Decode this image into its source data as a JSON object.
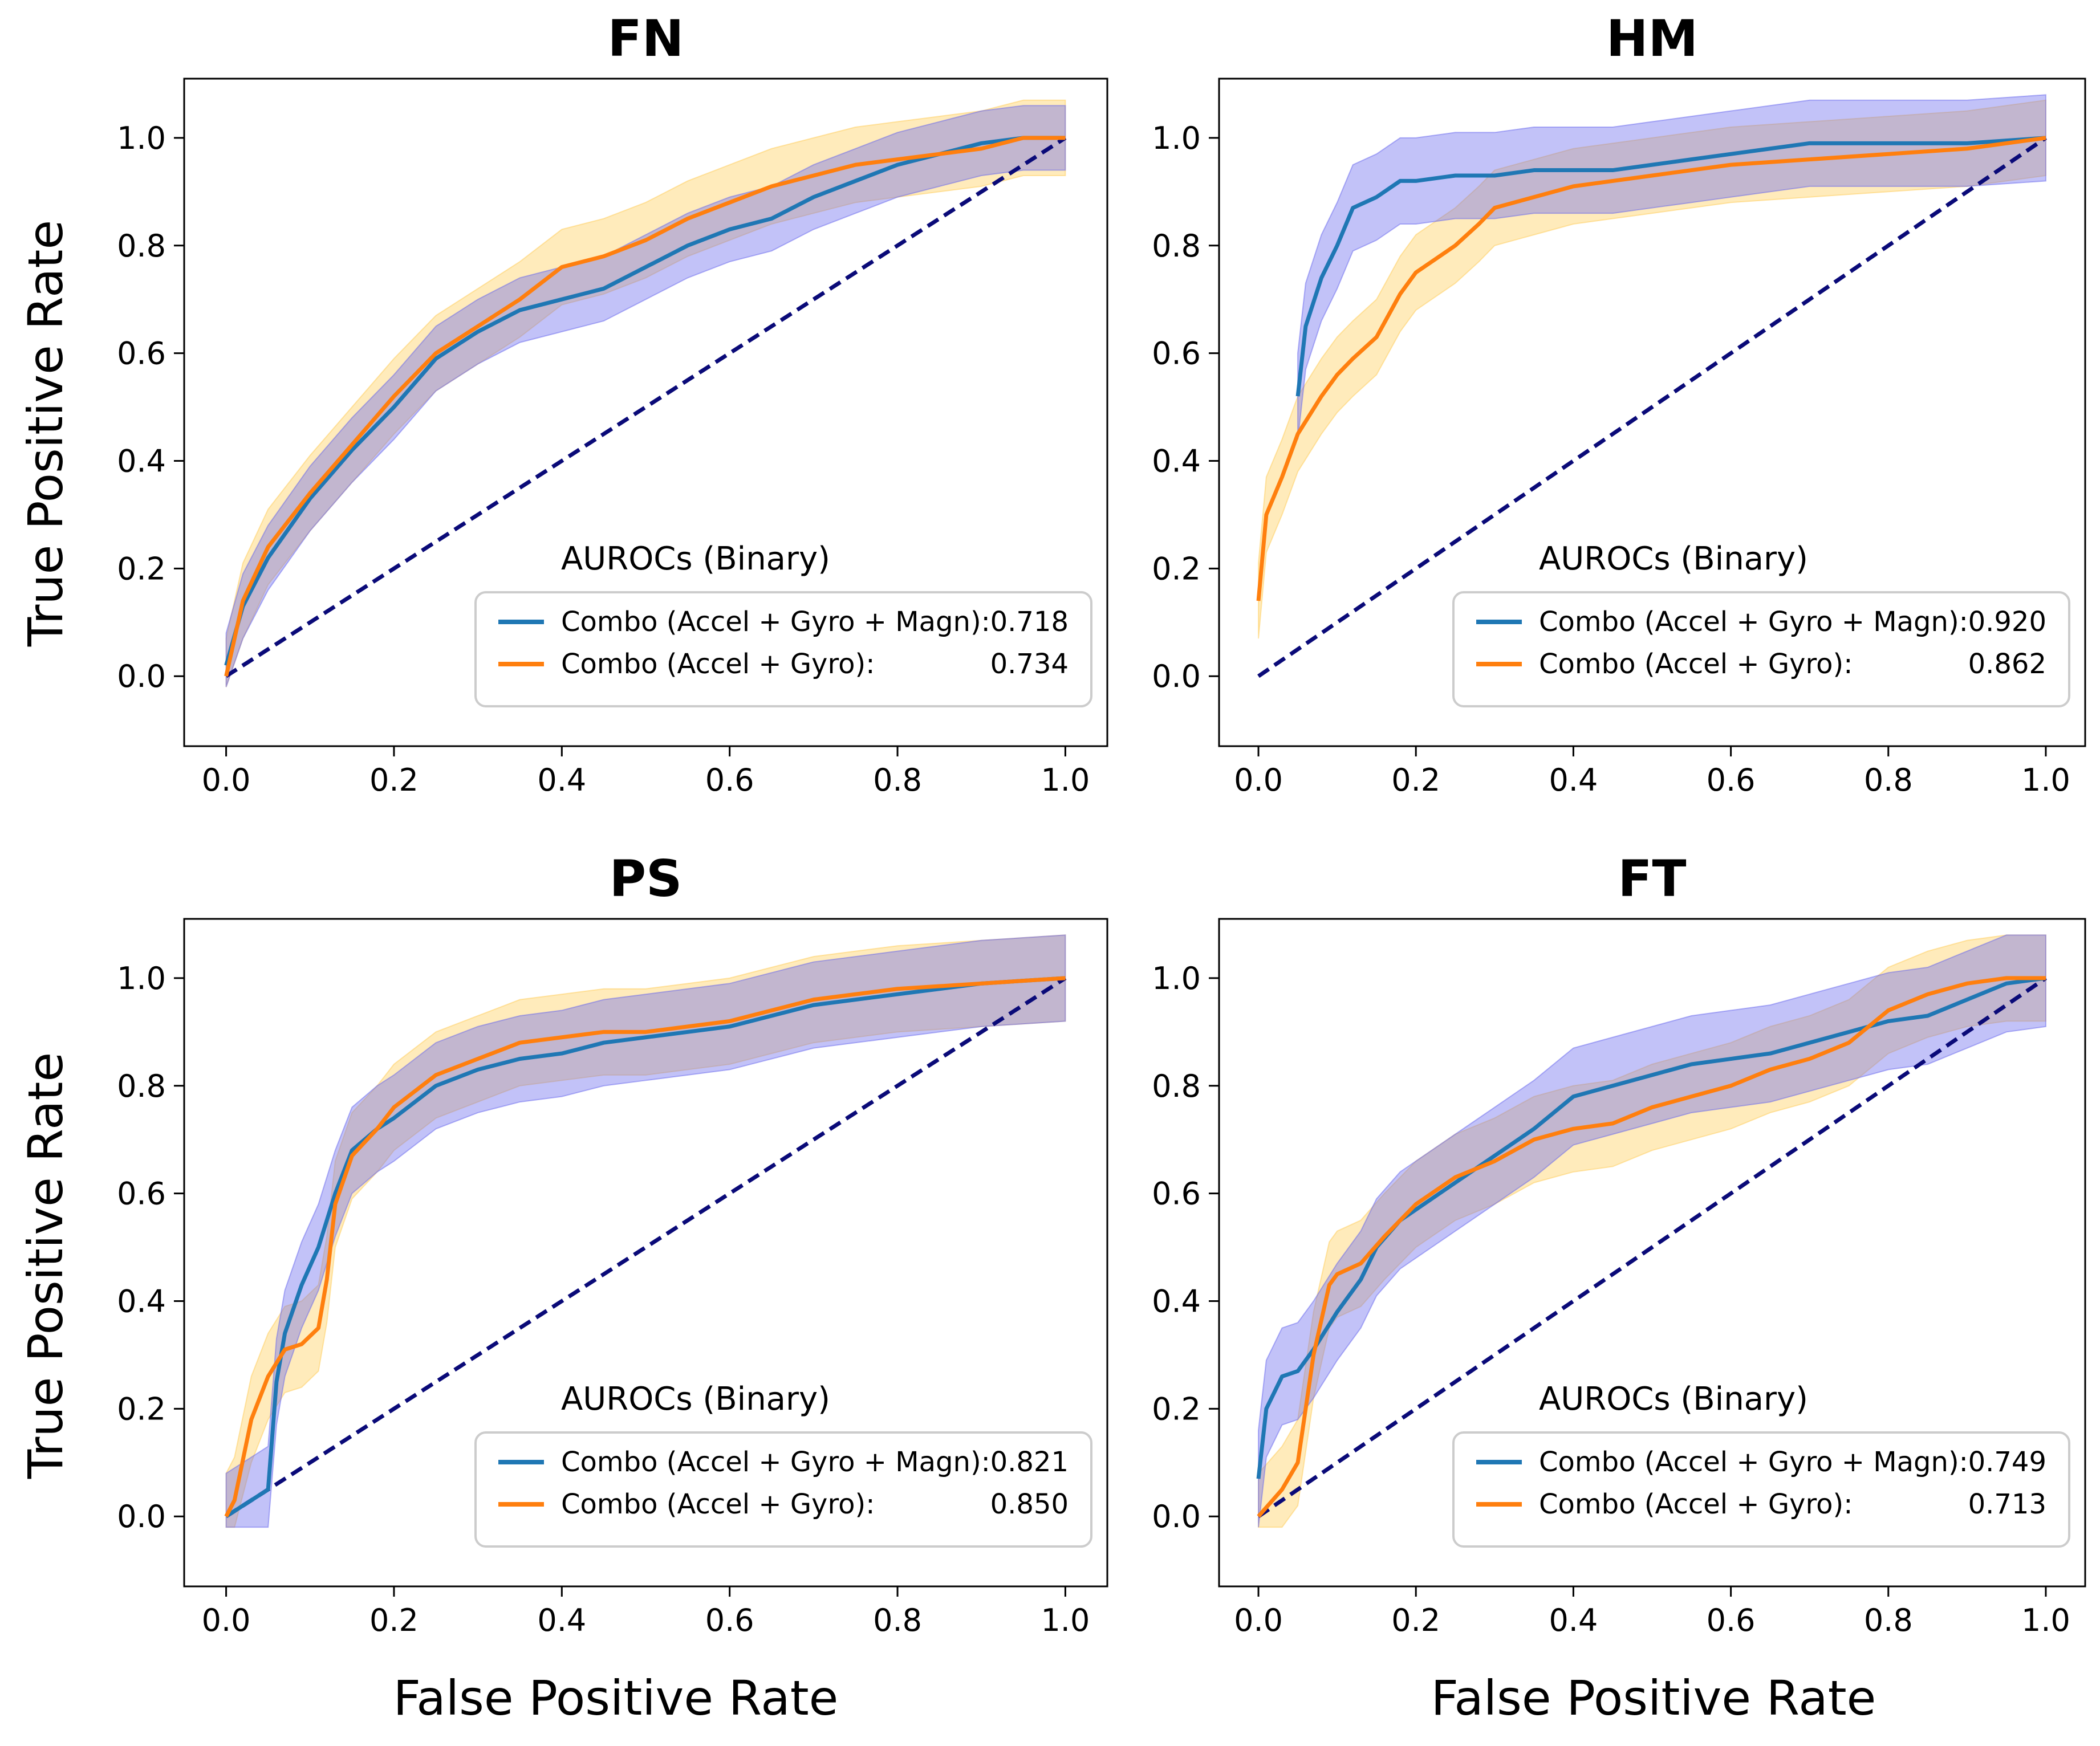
{
  "figure": {
    "ylabel": "True Positive Rate",
    "xlabel": "False Positive Rate"
  },
  "colors": {
    "blue": "#1f77b4",
    "orange": "#ff7f0e",
    "blue_band": "#6666ee",
    "orange_band": "#ffcc55",
    "diagonal": "#0a0a78"
  },
  "chart_data": [
    {
      "type": "line",
      "title": "FN",
      "xlim": [
        -0.05,
        1.05
      ],
      "ylim": [
        -0.13,
        1.11
      ],
      "xticks": [
        0.0,
        0.2,
        0.4,
        0.6,
        0.8,
        1.0
      ],
      "yticks": [
        0.0,
        0.2,
        0.4,
        0.6,
        0.8,
        1.0
      ],
      "legend_title": "AUROCs (Binary)",
      "legend_position": "lower-right",
      "series": [
        {
          "name": "Combo (Accel + Gyro + Magn):",
          "auroc": "0.718",
          "x": [
            0,
            0.02,
            0.05,
            0.1,
            0.15,
            0.2,
            0.25,
            0.3,
            0.35,
            0.4,
            0.45,
            0.5,
            0.55,
            0.6,
            0.65,
            0.7,
            0.75,
            0.8,
            0.85,
            0.9,
            0.95,
            1.0
          ],
          "y": [
            0.02,
            0.13,
            0.22,
            0.33,
            0.42,
            0.5,
            0.59,
            0.64,
            0.68,
            0.7,
            0.72,
            0.76,
            0.8,
            0.83,
            0.85,
            0.89,
            0.92,
            0.95,
            0.97,
            0.99,
            1.0,
            1.0
          ],
          "band": 0.06
        },
        {
          "name": "Combo (Accel + Gyro):",
          "auroc": "0.734",
          "x": [
            0,
            0.02,
            0.05,
            0.1,
            0.15,
            0.2,
            0.25,
            0.3,
            0.35,
            0.4,
            0.45,
            0.5,
            0.55,
            0.6,
            0.65,
            0.7,
            0.75,
            0.8,
            0.85,
            0.9,
            0.95,
            1.0
          ],
          "y": [
            0.0,
            0.14,
            0.24,
            0.34,
            0.43,
            0.52,
            0.6,
            0.65,
            0.7,
            0.76,
            0.78,
            0.81,
            0.85,
            0.88,
            0.91,
            0.93,
            0.95,
            0.96,
            0.97,
            0.98,
            1.0,
            1.0
          ],
          "band": 0.07
        }
      ]
    },
    {
      "type": "line",
      "title": "HM",
      "xlim": [
        -0.05,
        1.05
      ],
      "ylim": [
        -0.13,
        1.11
      ],
      "xticks": [
        0.0,
        0.2,
        0.4,
        0.6,
        0.8,
        1.0
      ],
      "yticks": [
        0.0,
        0.2,
        0.4,
        0.6,
        0.8,
        1.0
      ],
      "legend_title": "AUROCs (Binary)",
      "legend_position": "lower-right",
      "series": [
        {
          "name": "Combo (Accel + Gyro + Magn):",
          "auroc": "0.920",
          "x": [
            0.05,
            0.06,
            0.08,
            0.1,
            0.12,
            0.15,
            0.18,
            0.2,
            0.25,
            0.3,
            0.35,
            0.4,
            0.45,
            0.5,
            0.55,
            0.6,
            0.65,
            0.7,
            0.8,
            0.9,
            1.0
          ],
          "y": [
            0.52,
            0.65,
            0.74,
            0.8,
            0.87,
            0.89,
            0.92,
            0.92,
            0.93,
            0.93,
            0.94,
            0.94,
            0.94,
            0.95,
            0.96,
            0.97,
            0.98,
            0.99,
            0.99,
            0.99,
            1.0
          ],
          "band": 0.08
        },
        {
          "name": "Combo (Accel + Gyro):",
          "auroc": "0.862",
          "x": [
            0.0,
            0.01,
            0.03,
            0.05,
            0.08,
            0.1,
            0.12,
            0.15,
            0.18,
            0.2,
            0.22,
            0.25,
            0.28,
            0.3,
            0.35,
            0.4,
            0.45,
            0.5,
            0.6,
            0.7,
            0.8,
            0.9,
            1.0
          ],
          "y": [
            0.14,
            0.3,
            0.37,
            0.45,
            0.52,
            0.56,
            0.59,
            0.63,
            0.71,
            0.75,
            0.77,
            0.8,
            0.84,
            0.87,
            0.89,
            0.91,
            0.92,
            0.93,
            0.95,
            0.96,
            0.97,
            0.98,
            1.0
          ],
          "band": 0.07
        }
      ]
    },
    {
      "type": "line",
      "title": "PS",
      "xlim": [
        -0.05,
        1.05
      ],
      "ylim": [
        -0.13,
        1.11
      ],
      "xticks": [
        0.0,
        0.2,
        0.4,
        0.6,
        0.8,
        1.0
      ],
      "yticks": [
        0.0,
        0.2,
        0.4,
        0.6,
        0.8,
        1.0
      ],
      "legend_title": "AUROCs (Binary)",
      "legend_position": "lower-right",
      "series": [
        {
          "name": "Combo (Accel + Gyro + Magn):",
          "auroc": "0.821",
          "x": [
            0,
            0.05,
            0.06,
            0.07,
            0.09,
            0.11,
            0.13,
            0.15,
            0.18,
            0.2,
            0.25,
            0.3,
            0.35,
            0.4,
            0.45,
            0.5,
            0.55,
            0.6,
            0.65,
            0.7,
            0.8,
            0.9,
            1.0
          ],
          "y": [
            0.0,
            0.05,
            0.25,
            0.34,
            0.43,
            0.5,
            0.6,
            0.68,
            0.72,
            0.74,
            0.8,
            0.83,
            0.85,
            0.86,
            0.88,
            0.89,
            0.9,
            0.91,
            0.93,
            0.95,
            0.97,
            0.99,
            1.0
          ],
          "band": 0.08
        },
        {
          "name": "Combo (Accel + Gyro):",
          "auroc": "0.850",
          "x": [
            0,
            0.01,
            0.03,
            0.05,
            0.07,
            0.09,
            0.11,
            0.12,
            0.13,
            0.15,
            0.18,
            0.2,
            0.25,
            0.3,
            0.35,
            0.4,
            0.45,
            0.5,
            0.55,
            0.6,
            0.7,
            0.8,
            0.9,
            1.0
          ],
          "y": [
            0.0,
            0.03,
            0.18,
            0.26,
            0.31,
            0.32,
            0.35,
            0.44,
            0.58,
            0.67,
            0.72,
            0.76,
            0.82,
            0.85,
            0.88,
            0.89,
            0.9,
            0.9,
            0.91,
            0.92,
            0.96,
            0.98,
            0.99,
            1.0
          ],
          "band": 0.08
        }
      ]
    },
    {
      "type": "line",
      "title": "FT",
      "xlim": [
        -0.05,
        1.05
      ],
      "ylim": [
        -0.13,
        1.11
      ],
      "xticks": [
        0.0,
        0.2,
        0.4,
        0.6,
        0.8,
        1.0
      ],
      "yticks": [
        0.0,
        0.2,
        0.4,
        0.6,
        0.8,
        1.0
      ],
      "legend_title": "AUROCs (Binary)",
      "legend_position": "lower-right",
      "series": [
        {
          "name": "Combo (Accel + Gyro + Magn):",
          "auroc": "0.749",
          "x": [
            0.0,
            0.01,
            0.03,
            0.05,
            0.07,
            0.1,
            0.13,
            0.15,
            0.18,
            0.2,
            0.25,
            0.3,
            0.35,
            0.4,
            0.45,
            0.5,
            0.55,
            0.6,
            0.65,
            0.7,
            0.75,
            0.8,
            0.85,
            0.9,
            0.95,
            1.0
          ],
          "y": [
            0.07,
            0.2,
            0.26,
            0.27,
            0.31,
            0.38,
            0.44,
            0.5,
            0.55,
            0.57,
            0.62,
            0.67,
            0.72,
            0.78,
            0.8,
            0.82,
            0.84,
            0.85,
            0.86,
            0.88,
            0.9,
            0.92,
            0.93,
            0.96,
            0.99,
            1.0
          ],
          "band": 0.09
        },
        {
          "name": "Combo (Accel + Gyro):",
          "auroc": "0.713",
          "x": [
            0.0,
            0.03,
            0.05,
            0.07,
            0.09,
            0.1,
            0.13,
            0.16,
            0.2,
            0.25,
            0.3,
            0.35,
            0.4,
            0.45,
            0.5,
            0.55,
            0.6,
            0.65,
            0.7,
            0.75,
            0.8,
            0.85,
            0.9,
            0.95,
            1.0
          ],
          "y": [
            0.0,
            0.05,
            0.1,
            0.3,
            0.43,
            0.45,
            0.47,
            0.52,
            0.58,
            0.63,
            0.66,
            0.7,
            0.72,
            0.73,
            0.76,
            0.78,
            0.8,
            0.83,
            0.85,
            0.88,
            0.94,
            0.97,
            0.99,
            1.0,
            1.0
          ],
          "band": 0.08
        }
      ]
    }
  ]
}
